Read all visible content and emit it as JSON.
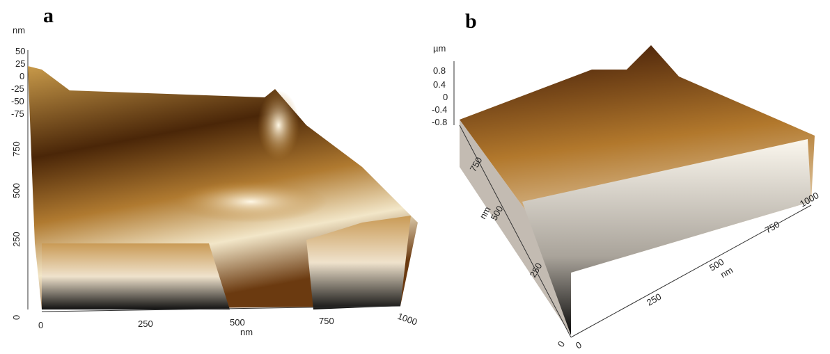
{
  "panels": {
    "a": {
      "label": "a",
      "z_unit": "nm",
      "z_ticks": [
        "50",
        "25",
        "0",
        "-25",
        "-50",
        "-75"
      ],
      "y_ticks": [
        "750",
        "500",
        "250",
        "0"
      ],
      "x_ticks": [
        "0",
        "250",
        "500",
        "750",
        "1000"
      ],
      "x_unit": "nm"
    },
    "b": {
      "label": "b",
      "z_unit": "µm",
      "z_ticks": [
        "0.8",
        "0.4",
        "0",
        "-0.4",
        "-0.8"
      ],
      "y_ticks": [
        "750",
        "500",
        "250",
        "0"
      ],
      "y_unit": "nm",
      "x_ticks": [
        "0",
        "250",
        "500",
        "750",
        "1000"
      ],
      "x_unit": "nm"
    }
  }
}
